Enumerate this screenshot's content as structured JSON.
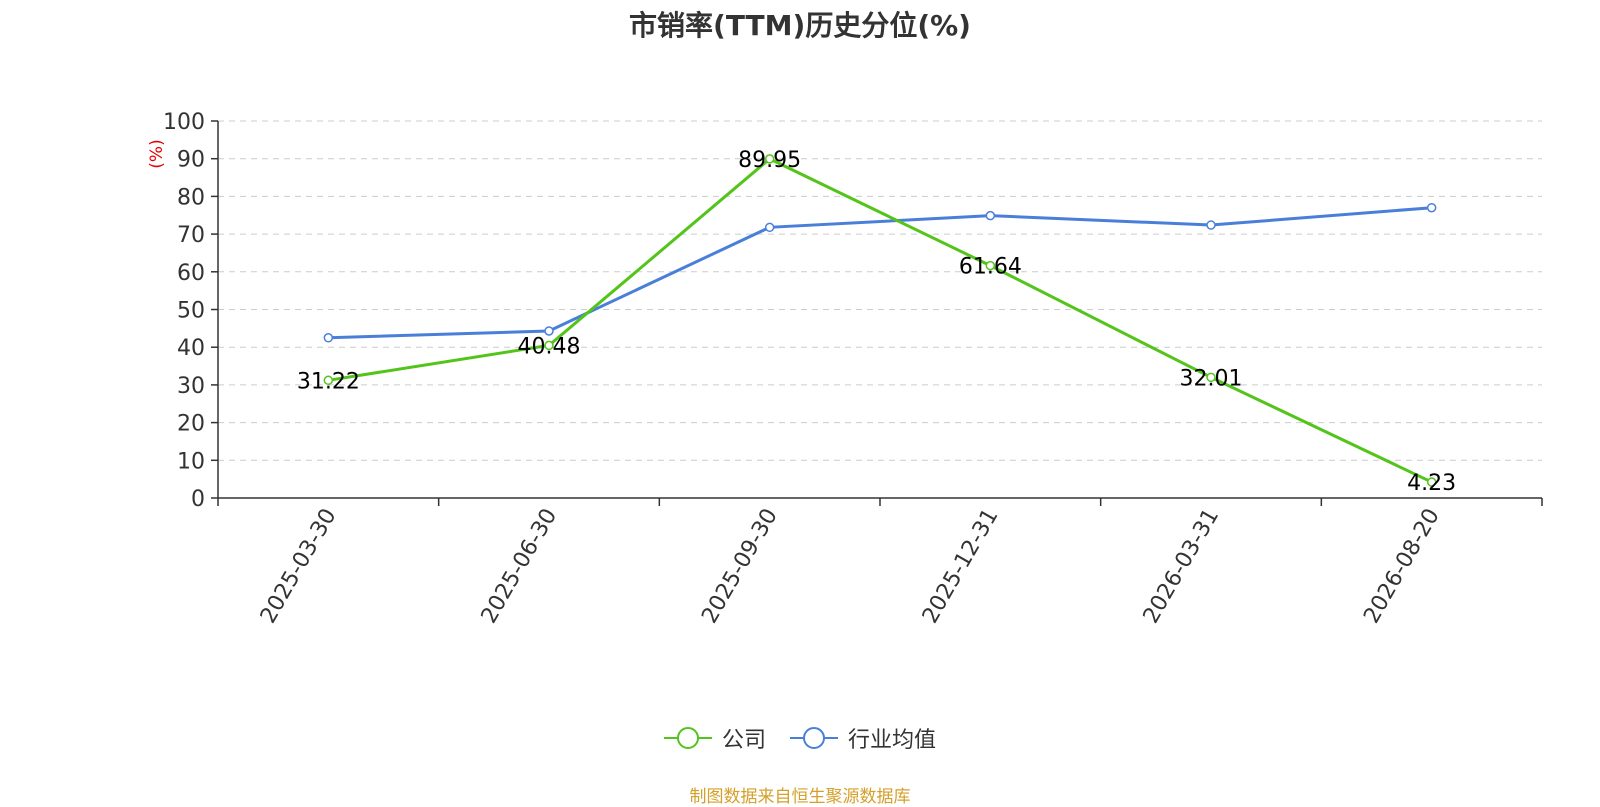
{
  "chart_data": {
    "type": "line",
    "title": "市销率(TTM)历史分位(%)",
    "ylabel": "(%)",
    "xlabel": "",
    "categories": [
      "2025-03-30",
      "2025-06-30",
      "2025-09-30",
      "2025-12-31",
      "2026-03-31",
      "2026-08-20"
    ],
    "ylim": [
      0,
      100
    ],
    "yticks": [
      0,
      10,
      20,
      30,
      40,
      50,
      60,
      70,
      80,
      90,
      100
    ],
    "grid": true,
    "legend_position": "bottom",
    "series": [
      {
        "name": "公司",
        "color": "#52c41a",
        "values": [
          31.22,
          40.48,
          89.95,
          61.64,
          32.01,
          4.23
        ],
        "show_labels": true
      },
      {
        "name": "行业均值",
        "color": "#4a7fd9",
        "values": [
          42.5,
          44.3,
          71.8,
          74.9,
          72.4,
          77.0
        ],
        "show_labels": false
      }
    ]
  },
  "footer": "制图数据来自恒生聚源数据库",
  "colors": {
    "ylabel": "#e60000",
    "axis": "#333333",
    "grid": "#cccccc",
    "footer": "#d4a02a"
  }
}
